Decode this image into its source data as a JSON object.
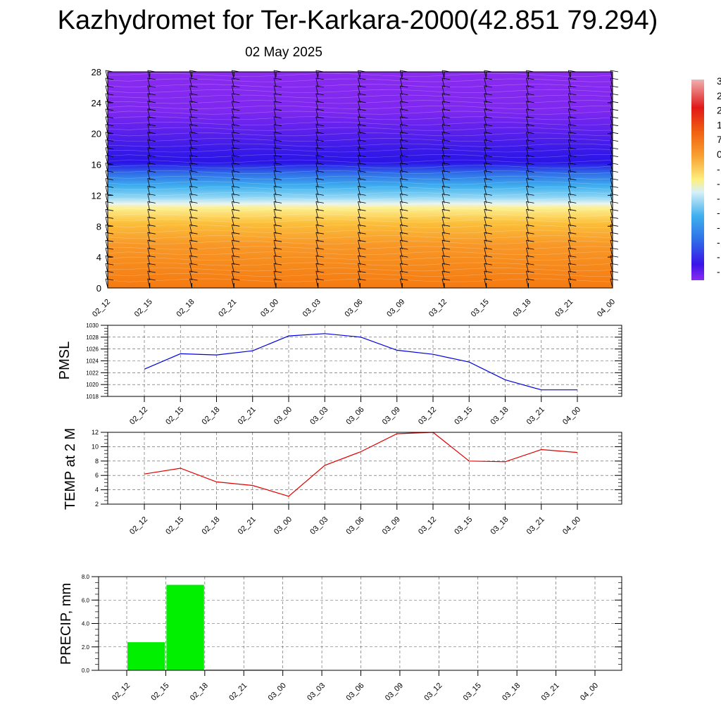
{
  "title": "Kazhydromet for Ter-Karkara-2000(42.851 79.294)",
  "subtitle": "02 May 2025",
  "time_labels": [
    "02_12",
    "02_15",
    "02_18",
    "02_21",
    "03_00",
    "03_03",
    "03_06",
    "03_09",
    "03_12",
    "03_15",
    "03_18",
    "03_21",
    "04_00"
  ],
  "colorbar_labels": [
    "3",
    "2",
    "2",
    "1",
    "7",
    "0",
    "-",
    "-",
    "-",
    "-",
    "-",
    "-",
    "-",
    "-"
  ],
  "chart_data": [
    {
      "type": "heatmap",
      "title": "",
      "xlabel": "",
      "ylabel": "",
      "x": [
        "02_12",
        "02_15",
        "02_18",
        "02_21",
        "03_00",
        "03_03",
        "03_06",
        "03_09",
        "03_12",
        "03_15",
        "03_18",
        "03_21",
        "04_00"
      ],
      "yticks": [
        0,
        4,
        8,
        12,
        16,
        20,
        24,
        28
      ],
      "ylim": [
        0,
        28
      ],
      "overlay": "wind barbs",
      "colors": {
        "low_levels": "#f7a020",
        "mid_levels": "#3fb6ee",
        "upper_levels": "#3318e8",
        "top_levels": "#8a2bf0"
      }
    },
    {
      "type": "line",
      "ylabel": "PMSL",
      "x": [
        "02_12",
        "02_15",
        "02_18",
        "02_21",
        "03_00",
        "03_03",
        "03_06",
        "03_09",
        "03_12",
        "03_15",
        "03_18",
        "03_21",
        "04_00"
      ],
      "yticks": [
        "1018",
        "1020",
        "1022",
        "1024",
        "1026",
        "1028",
        "1030"
      ],
      "ylim": [
        1018,
        1030
      ],
      "series": [
        {
          "values": [
            1022.6,
            1025.2,
            1025.0,
            1025.7,
            1028.2,
            1028.6,
            1028.0,
            1025.8,
            1025.1,
            1023.8,
            1020.8,
            1019.1,
            1019.1
          ]
        }
      ],
      "color": "#0000e0",
      "grid": true
    },
    {
      "type": "line",
      "ylabel": "TEMP at 2 M",
      "x": [
        "02_12",
        "02_15",
        "02_18",
        "02_21",
        "03_00",
        "03_03",
        "03_06",
        "03_09",
        "03_12",
        "03_15",
        "03_18",
        "03_21",
        "04_00"
      ],
      "yticks": [
        "2",
        "4",
        "6",
        "8",
        "10",
        "12"
      ],
      "ylim": [
        2,
        12
      ],
      "series": [
        {
          "values": [
            6.2,
            7.0,
            5.1,
            4.6,
            3.1,
            7.4,
            9.3,
            11.8,
            12.0,
            8.0,
            7.9,
            9.6,
            9.2
          ]
        }
      ],
      "color": "#e00000",
      "grid": true
    },
    {
      "type": "bar",
      "ylabel": "PRECIP, mm",
      "categories": [
        "02_12",
        "02_15",
        "02_18",
        "02_21",
        "03_00",
        "03_03",
        "03_06",
        "03_09",
        "03_12",
        "03_15",
        "03_18",
        "03_21",
        "04_00"
      ],
      "values": [
        0.0,
        2.4,
        7.3,
        0.05,
        0.05,
        0.0,
        0.0,
        0.0,
        0.0,
        0.0,
        0.0,
        0.0,
        0.0
      ],
      "yticks": [
        "0.0",
        "2.0",
        "4.0",
        "6.0",
        "8.0"
      ],
      "ylim": [
        0,
        8
      ],
      "color": "#00f000",
      "grid": true
    }
  ]
}
